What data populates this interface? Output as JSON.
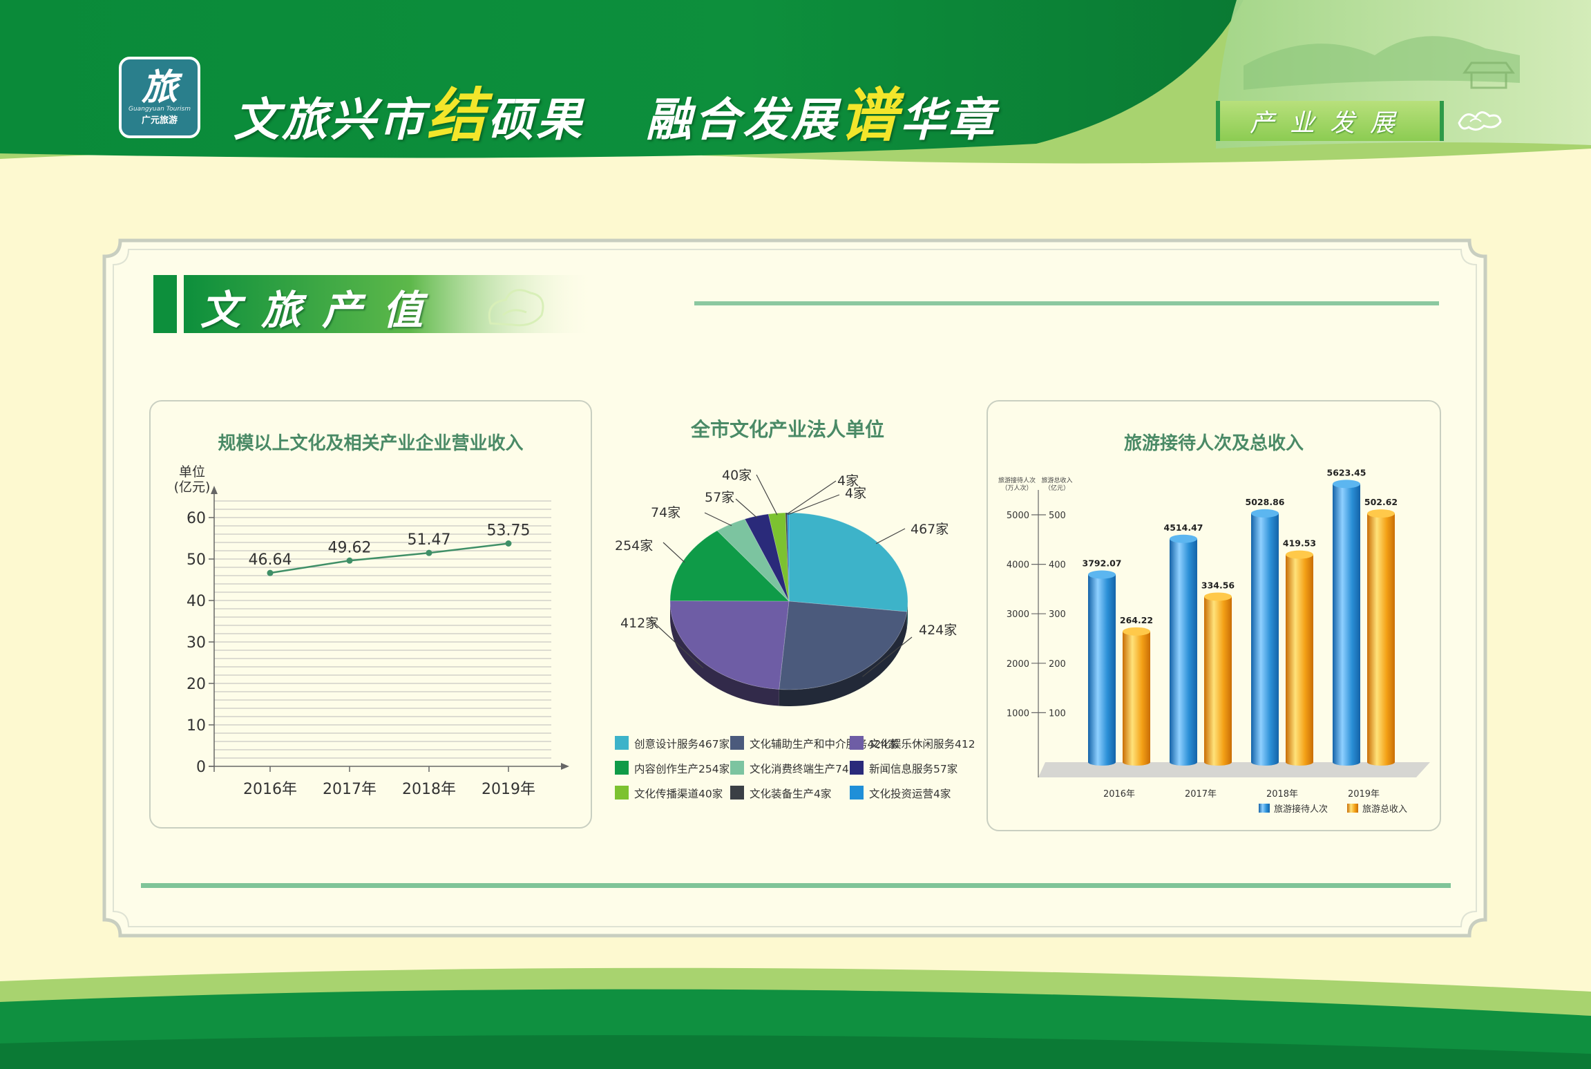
{
  "header": {
    "logo_text": "广元旅游",
    "logo_sub": "Guangyuan Tourism",
    "logo_mark": "旅",
    "title_part1_a": "文旅兴市",
    "title_part1_hl": "结",
    "title_part1_b": "硕果",
    "title_part2_a": "融合发展",
    "title_part2_hl": "谱",
    "title_part2_b": "华章",
    "section_tag": "产业发展"
  },
  "section": {
    "title": "文旅产值"
  },
  "colors": {
    "header_green": "#0d8f3c",
    "accent_yellow": "#f3e62b",
    "panel_bg": "#fefde9",
    "rule": "#8bc8a0"
  },
  "chart_data": [
    {
      "type": "line",
      "title": "规模以上文化及相关产业企业营业收入",
      "ylabel": "单位\n(亿元)",
      "unit_line1": "单位",
      "unit_line2": "(亿元)",
      "categories": [
        "2016年",
        "2017年",
        "2018年",
        "2019年"
      ],
      "values": [
        46.64,
        49.62,
        51.47,
        53.75
      ],
      "value_labels": [
        "46.64",
        "49.62",
        "51.47",
        "53.75"
      ],
      "ylim": [
        0,
        60
      ],
      "yticks": [
        "0",
        "10",
        "20",
        "30",
        "40",
        "50",
        "60"
      ],
      "grid": true,
      "color": "#3f8f67"
    },
    {
      "type": "pie",
      "title": "全市文化产业法人单位",
      "slices": [
        {
          "name": "创意设计服务467家",
          "value": 467,
          "label": "467家",
          "color": "#3db3c9"
        },
        {
          "name": "文化辅助生产和中介服务424家",
          "value": 424,
          "label": "424家",
          "color": "#4b5a7c"
        },
        {
          "name": "文化娱乐休闲服务412家",
          "value": 412,
          "label": "412家",
          "color": "#6e5da5"
        },
        {
          "name": "内容创作生产254家",
          "value": 254,
          "label": "254家",
          "color": "#0f9b48"
        },
        {
          "name": "文化消费终端生产74家",
          "value": 74,
          "label": "74家",
          "color": "#7cc4a0"
        },
        {
          "name": "新闻信息服务57家",
          "value": 57,
          "label": "57家",
          "color": "#2a2a7a"
        },
        {
          "name": "文化传播渠道40家",
          "value": 40,
          "label": "40家",
          "color": "#7cc230"
        },
        {
          "name": "文化装备生产4家",
          "value": 4,
          "label": "4家",
          "color": "#3a3f45"
        },
        {
          "name": "文化投资运营4家",
          "value": 4,
          "label": "4家",
          "color": "#1f8fd8"
        }
      ],
      "legend_placement": "bottom"
    },
    {
      "type": "bar",
      "title": "旅游接待人次及总收入",
      "categories": [
        "2016年",
        "2017年",
        "2018年",
        "2019年"
      ],
      "left_axis_label_1": "旅游接待人次",
      "left_axis_label_2": "（万人次）",
      "right_axis_label_1": "旅游总收入",
      "right_axis_label_2": "（亿元）",
      "left_ticks": [
        "1000",
        "2000",
        "3000",
        "4000",
        "5000"
      ],
      "right_ticks": [
        "100",
        "200",
        "300",
        "400",
        "500"
      ],
      "left_ylim": [
        0,
        5000
      ],
      "right_ylim": [
        0,
        500
      ],
      "series": [
        {
          "name": "旅游接待人次",
          "axis": "left",
          "values": [
            3792.07,
            4514.47,
            5028.86,
            5623.45
          ],
          "labels": [
            "3792.07",
            "4514.47",
            "5028.86",
            "5623.45"
          ],
          "color": "#2a8fd6"
        },
        {
          "name": "旅游总收入",
          "axis": "right",
          "values": [
            264.22,
            334.56,
            419.53,
            502.62
          ],
          "labels": [
            "264.22",
            "334.56",
            "419.53",
            "502.62"
          ],
          "color": "#f4a116"
        }
      ],
      "legend_placement": "bottom-right"
    }
  ]
}
